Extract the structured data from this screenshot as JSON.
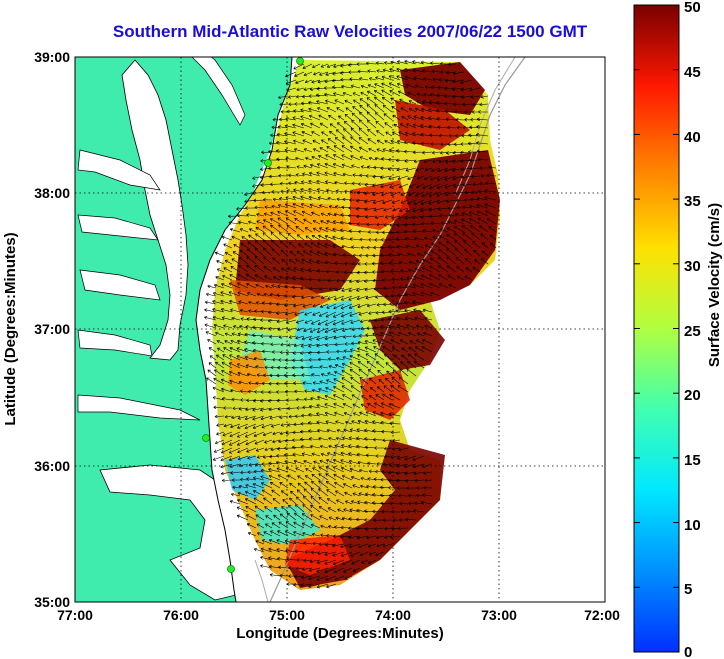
{
  "title": "Southern Mid-Atlantic Raw Velocities 2007/06/22 1500 GMT",
  "x_axis": {
    "label": "Longitude (Degrees:Minutes)",
    "ticks": [
      "77:00",
      "76:00",
      "75:00",
      "74:00",
      "73:00",
      "72:00"
    ]
  },
  "y_axis": {
    "label": "Latitude (Degrees:Minutes)",
    "ticks": [
      "39:00",
      "38:00",
      "37:00",
      "36:00",
      "35:00"
    ]
  },
  "colorbar": {
    "label": "Surface Velocity (cm/s)",
    "min": 0,
    "max": 50,
    "ticks": [
      "50",
      "45",
      "40",
      "35",
      "30",
      "25",
      "20",
      "15",
      "10",
      "5",
      "0"
    ],
    "colormap": "jet"
  },
  "colors": {
    "land": "#40ecad",
    "title": "#1a0ddb",
    "station_marker": "#22ee22",
    "grid": "#000000",
    "arrows": "#000000"
  },
  "grid": "dotted"
}
